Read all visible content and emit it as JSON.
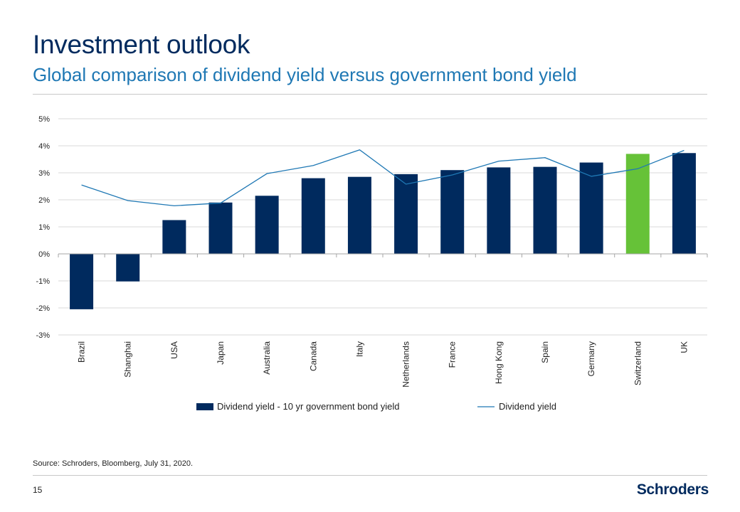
{
  "header": {
    "title": "Investment outlook",
    "subtitle": "Global comparison of dividend yield versus government bond yield"
  },
  "colors": {
    "bar": "#002a5e",
    "highlight": "#66c238",
    "line": "#1f78b4",
    "grid": "#d9d9d9",
    "axis": "#a6a6a6",
    "text": "#222222"
  },
  "chart_data": {
    "type": "bar",
    "title": "",
    "xlabel": "",
    "ylabel": "",
    "ylim": [
      -3,
      5
    ],
    "yticks": [
      5,
      4,
      3,
      2,
      1,
      0,
      -1,
      -2,
      -3
    ],
    "ytick_labels": [
      "5%",
      "4%",
      "3%",
      "2%",
      "1%",
      "0%",
      "-1%",
      "-2%",
      "-3%"
    ],
    "grid": true,
    "legend_position": "bottom",
    "categories": [
      "Brazil",
      "Shanghai",
      "USA",
      "Japan",
      "Australia",
      "Canada",
      "Italy",
      "Netherlands",
      "France",
      "Hong Kong",
      "Spain",
      "Germany",
      "Switzerland",
      "UK"
    ],
    "highlight_category": "Switzerland",
    "series": [
      {
        "name": "Dividend yield - 10 yr government bond yield",
        "kind": "bar",
        "values": [
          -2.05,
          -1.02,
          1.25,
          1.9,
          2.15,
          2.8,
          2.85,
          2.95,
          3.1,
          3.2,
          3.22,
          3.38,
          3.7,
          3.73
        ]
      },
      {
        "name": "Dividend yield",
        "kind": "line",
        "values": [
          2.55,
          1.97,
          1.78,
          1.88,
          2.97,
          3.27,
          3.85,
          2.58,
          2.92,
          3.43,
          3.56,
          2.87,
          3.15,
          3.83
        ]
      }
    ]
  },
  "footer": {
    "source": "Source: Schroders, Bloomberg, July 31, 2020.",
    "page_number": "15",
    "logo_text": "Schroders"
  }
}
